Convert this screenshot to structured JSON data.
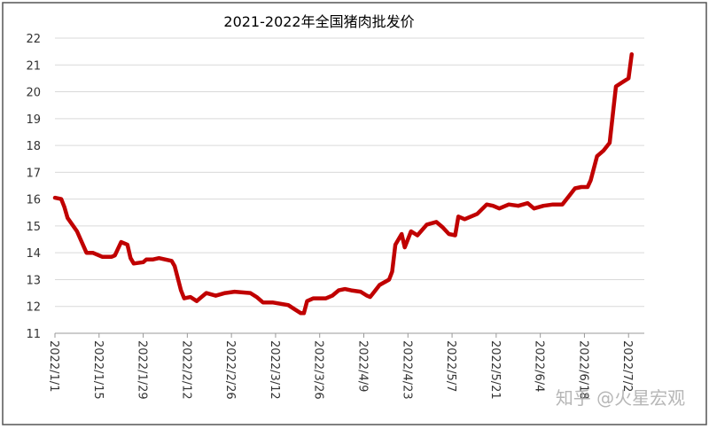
{
  "chart_data": {
    "type": "line",
    "title": "2021-2022年全国猪肉批发价",
    "x": [
      "2022/1/1",
      "2022/1/3",
      "2022/1/4",
      "2022/1/5",
      "2022/1/8",
      "2022/1/11",
      "2022/1/13",
      "2022/1/16",
      "2022/1/19",
      "2022/1/20",
      "2022/1/22",
      "2022/1/24",
      "2022/1/25",
      "2022/1/26",
      "2022/1/29",
      "2022/1/30",
      "2022/2/1",
      "2022/2/3",
      "2022/2/7",
      "2022/2/8",
      "2022/2/10",
      "2022/2/11",
      "2022/2/13",
      "2022/2/15",
      "2022/2/16",
      "2022/2/18",
      "2022/2/21",
      "2022/2/24",
      "2022/2/27",
      "2022/3/4",
      "2022/3/6",
      "2022/3/8",
      "2022/3/11",
      "2022/3/16",
      "2022/3/18",
      "2022/3/20",
      "2022/3/21",
      "2022/3/22",
      "2022/3/24",
      "2022/3/26",
      "2022/3/28",
      "2022/3/30",
      "2022/4/1",
      "2022/4/3",
      "2022/4/5",
      "2022/4/8",
      "2022/4/10",
      "2022/4/11",
      "2022/4/12",
      "2022/4/14",
      "2022/4/17",
      "2022/4/18",
      "2022/4/19",
      "2022/4/21",
      "2022/4/22",
      "2022/4/24",
      "2022/4/26",
      "2022/4/29",
      "2022/5/2",
      "2022/5/4",
      "2022/5/6",
      "2022/5/8",
      "2022/5/9",
      "2022/5/11",
      "2022/5/15",
      "2022/5/18",
      "2022/5/20",
      "2022/5/22",
      "2022/5/25",
      "2022/5/28",
      "2022/5/31",
      "2022/6/2",
      "2022/6/5",
      "2022/6/8",
      "2022/6/11",
      "2022/6/13",
      "2022/6/15",
      "2022/6/17",
      "2022/6/19",
      "2022/6/20",
      "2022/6/22",
      "2022/6/24",
      "2022/6/26",
      "2022/6/28",
      "2022/6/30",
      "2022/7/2",
      "2022/7/3"
    ],
    "series": [
      {
        "name": "全国猪肉批发价",
        "color": "#c00000",
        "values": [
          16.05,
          16.0,
          15.7,
          15.3,
          14.8,
          14.0,
          14.0,
          13.85,
          13.85,
          13.9,
          14.4,
          14.3,
          13.8,
          13.6,
          13.65,
          13.75,
          13.75,
          13.8,
          13.7,
          13.5,
          12.6,
          12.3,
          12.35,
          12.2,
          12.3,
          12.5,
          12.4,
          12.5,
          12.55,
          12.5,
          12.35,
          12.15,
          12.15,
          12.05,
          11.9,
          11.75,
          11.75,
          12.2,
          12.3,
          12.3,
          12.3,
          12.4,
          12.6,
          12.65,
          12.6,
          12.55,
          12.4,
          12.35,
          12.5,
          12.8,
          13.0,
          13.3,
          14.3,
          14.7,
          14.2,
          14.8,
          14.65,
          15.05,
          15.15,
          14.95,
          14.7,
          14.65,
          15.35,
          15.25,
          15.45,
          15.8,
          15.75,
          15.65,
          15.8,
          15.75,
          15.85,
          15.65,
          15.75,
          15.8,
          15.8,
          16.1,
          16.4,
          16.45,
          16.45,
          16.7,
          17.6,
          17.8,
          18.1,
          20.2,
          20.35,
          20.5,
          21.4
        ]
      }
    ],
    "xlim": [
      "2022/1/1",
      "2022/7/7"
    ],
    "xticks": [
      "2022/1/1",
      "2022/1/15",
      "2022/1/29",
      "2022/2/12",
      "2022/2/26",
      "2022/3/12",
      "2022/3/26",
      "2022/4/9",
      "2022/4/23",
      "2022/5/7",
      "2022/5/21",
      "2022/6/4",
      "2022/6/18",
      "2022/7/2"
    ],
    "ylim": [
      11,
      22
    ],
    "yticks": [
      11,
      12,
      13,
      14,
      15,
      16,
      17,
      18,
      19,
      20,
      21,
      22
    ],
    "grid": true
  },
  "watermark": "知乎 @火星宏观"
}
